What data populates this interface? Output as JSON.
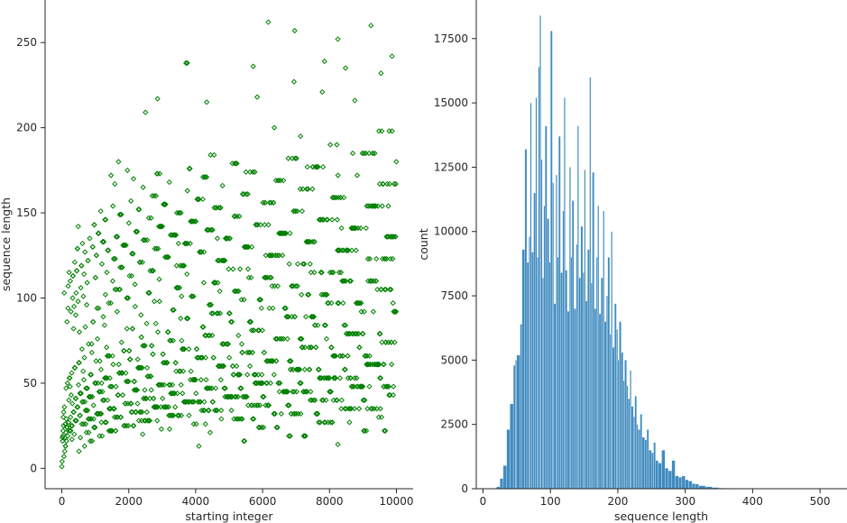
{
  "chart_data": [
    {
      "type": "scatter",
      "xlabel": "starting integer",
      "ylabel": "sequence length",
      "xlim": [
        -500,
        10500
      ],
      "ylim": [
        -12,
        275
      ],
      "xticks": [
        0,
        2000,
        4000,
        6000,
        8000,
        10000
      ],
      "xtick_labels": [
        "0",
        "2000",
        "4000",
        "6000",
        "8000",
        "10000"
      ],
      "yticks": [
        0,
        50,
        100,
        150,
        200,
        250
      ],
      "ytick_labels": [
        "0",
        "50",
        "100",
        "150",
        "200",
        "250"
      ],
      "marker": "diamond-open",
      "color": "#008000",
      "grid": false,
      "series": [
        {
          "bands": [
            {
              "x": [
                0,
                300
              ],
              "y": [
                1,
                20
              ]
            },
            {
              "x": [
                100,
                1500
              ],
              "y": [
                20,
                35
              ]
            },
            {
              "x": [
                300,
                4000
              ],
              "y": [
                35,
                60
              ]
            },
            {
              "x": [
                500,
                6000
              ],
              "y": [
                60,
                90
              ]
            },
            {
              "x": [
                1000,
                8000
              ],
              "y": [
                90,
                120
              ]
            },
            {
              "x": [
                1500,
                10000
              ],
              "y": [
                120,
                145
              ]
            },
            {
              "x": [
                2500,
                10000
              ],
              "y": [
                145,
                185
              ]
            },
            {
              "x": [
                5000,
                10000
              ],
              "y": [
                185,
                210
              ]
            },
            {
              "x": [
                0,
                300
              ],
              "y": [
                95,
                145
              ]
            },
            {
              "x": [
                4000,
                10000
              ],
              "y": [
                15,
                60
              ]
            }
          ],
          "highlighted_points": [
            {
              "x": 6170,
              "y": 262
            },
            {
              "x": 9240,
              "y": 260
            },
            {
              "x": 6960,
              "y": 257
            },
            {
              "x": 8250,
              "y": 252
            },
            {
              "x": 9870,
              "y": 242
            },
            {
              "x": 3750,
              "y": 238
            },
            {
              "x": 5720,
              "y": 236
            },
            {
              "x": 7850,
              "y": 239
            },
            {
              "x": 8480,
              "y": 235
            },
            {
              "x": 9540,
              "y": 232
            },
            {
              "x": 6940,
              "y": 227
            },
            {
              "x": 2860,
              "y": 217
            },
            {
              "x": 4330,
              "y": 215
            },
            {
              "x": 2500,
              "y": 209
            },
            {
              "x": 8250,
              "y": 14
            }
          ]
        }
      ]
    },
    {
      "type": "bar",
      "subtype": "histogram",
      "xlabel": "sequence length",
      "ylabel": "count",
      "xlim": [
        -10,
        540
      ],
      "ylim": [
        0,
        19000
      ],
      "xticks": [
        0,
        100,
        200,
        300,
        400,
        500
      ],
      "xtick_labels": [
        "0",
        "100",
        "200",
        "300",
        "400",
        "500"
      ],
      "yticks": [
        0,
        2500,
        5000,
        7500,
        10000,
        12500,
        15000,
        17500
      ],
      "ytick_labels": [
        "0",
        "2500",
        "5000",
        "7500",
        "10000",
        "12500",
        "15000",
        "17500"
      ],
      "color": "#1f77b4",
      "grid": false,
      "bins": [
        {
          "x": 20,
          "count": 80
        },
        {
          "x": 25,
          "count": 400
        },
        {
          "x": 30,
          "count": 900
        },
        {
          "x": 35,
          "count": 2300
        },
        {
          "x": 40,
          "count": 3300
        },
        {
          "x": 45,
          "count": 4800
        },
        {
          "x": 48,
          "count": 5000
        },
        {
          "x": 50,
          "count": 5200
        },
        {
          "x": 55,
          "count": 6400
        },
        {
          "x": 58,
          "count": 9300
        },
        {
          "x": 62,
          "count": 13200
        },
        {
          "x": 65,
          "count": 8800
        },
        {
          "x": 68,
          "count": 9800
        },
        {
          "x": 70,
          "count": 15000
        },
        {
          "x": 72,
          "count": 9200
        },
        {
          "x": 75,
          "count": 11500
        },
        {
          "x": 78,
          "count": 15200
        },
        {
          "x": 80,
          "count": 9000
        },
        {
          "x": 82,
          "count": 16400
        },
        {
          "x": 84,
          "count": 18400
        },
        {
          "x": 86,
          "count": 12800
        },
        {
          "x": 88,
          "count": 8200
        },
        {
          "x": 90,
          "count": 11000
        },
        {
          "x": 92,
          "count": 14100
        },
        {
          "x": 95,
          "count": 10500
        },
        {
          "x": 98,
          "count": 8800
        },
        {
          "x": 100,
          "count": 17800
        },
        {
          "x": 103,
          "count": 11900
        },
        {
          "x": 105,
          "count": 7200
        },
        {
          "x": 108,
          "count": 12200
        },
        {
          "x": 110,
          "count": 9000
        },
        {
          "x": 112,
          "count": 13700
        },
        {
          "x": 115,
          "count": 8400
        },
        {
          "x": 118,
          "count": 10800
        },
        {
          "x": 120,
          "count": 15200
        },
        {
          "x": 122,
          "count": 8500
        },
        {
          "x": 125,
          "count": 6900
        },
        {
          "x": 128,
          "count": 12500
        },
        {
          "x": 130,
          "count": 9000
        },
        {
          "x": 132,
          "count": 11200
        },
        {
          "x": 135,
          "count": 7000
        },
        {
          "x": 138,
          "count": 9500
        },
        {
          "x": 140,
          "count": 14100
        },
        {
          "x": 142,
          "count": 8200
        },
        {
          "x": 145,
          "count": 10200
        },
        {
          "x": 148,
          "count": 8400
        },
        {
          "x": 150,
          "count": 12400
        },
        {
          "x": 152,
          "count": 7300
        },
        {
          "x": 155,
          "count": 9300
        },
        {
          "x": 158,
          "count": 16000
        },
        {
          "x": 160,
          "count": 8000
        },
        {
          "x": 162,
          "count": 12300
        },
        {
          "x": 165,
          "count": 7000
        },
        {
          "x": 168,
          "count": 9000
        },
        {
          "x": 170,
          "count": 11000
        },
        {
          "x": 172,
          "count": 6800
        },
        {
          "x": 175,
          "count": 8200
        },
        {
          "x": 178,
          "count": 10800
        },
        {
          "x": 180,
          "count": 6500
        },
        {
          "x": 183,
          "count": 7500
        },
        {
          "x": 185,
          "count": 9000
        },
        {
          "x": 188,
          "count": 6000
        },
        {
          "x": 190,
          "count": 10000
        },
        {
          "x": 192,
          "count": 5500
        },
        {
          "x": 195,
          "count": 7200
        },
        {
          "x": 198,
          "count": 6200
        },
        {
          "x": 200,
          "count": 5000
        },
        {
          "x": 202,
          "count": 6500
        },
        {
          "x": 205,
          "count": 5300
        },
        {
          "x": 208,
          "count": 4200
        },
        {
          "x": 210,
          "count": 5000
        },
        {
          "x": 213,
          "count": 4000
        },
        {
          "x": 215,
          "count": 3500
        },
        {
          "x": 218,
          "count": 4600
        },
        {
          "x": 220,
          "count": 3200
        },
        {
          "x": 223,
          "count": 2800
        },
        {
          "x": 225,
          "count": 3600
        },
        {
          "x": 228,
          "count": 2500
        },
        {
          "x": 230,
          "count": 2300
        },
        {
          "x": 233,
          "count": 2900
        },
        {
          "x": 236,
          "count": 2000
        },
        {
          "x": 240,
          "count": 1900
        },
        {
          "x": 243,
          "count": 2300
        },
        {
          "x": 246,
          "count": 1500
        },
        {
          "x": 250,
          "count": 1400
        },
        {
          "x": 253,
          "count": 1800
        },
        {
          "x": 256,
          "count": 1100
        },
        {
          "x": 260,
          "count": 1000
        },
        {
          "x": 265,
          "count": 1500
        },
        {
          "x": 270,
          "count": 800
        },
        {
          "x": 275,
          "count": 700
        },
        {
          "x": 280,
          "count": 1100
        },
        {
          "x": 285,
          "count": 500
        },
        {
          "x": 290,
          "count": 450
        },
        {
          "x": 295,
          "count": 500
        },
        {
          "x": 300,
          "count": 350
        },
        {
          "x": 305,
          "count": 300
        },
        {
          "x": 310,
          "count": 200
        },
        {
          "x": 315,
          "count": 180
        },
        {
          "x": 320,
          "count": 120
        },
        {
          "x": 330,
          "count": 80
        },
        {
          "x": 340,
          "count": 50
        },
        {
          "x": 350,
          "count": 30
        },
        {
          "x": 360,
          "count": 20
        },
        {
          "x": 380,
          "count": 10
        }
      ]
    }
  ]
}
